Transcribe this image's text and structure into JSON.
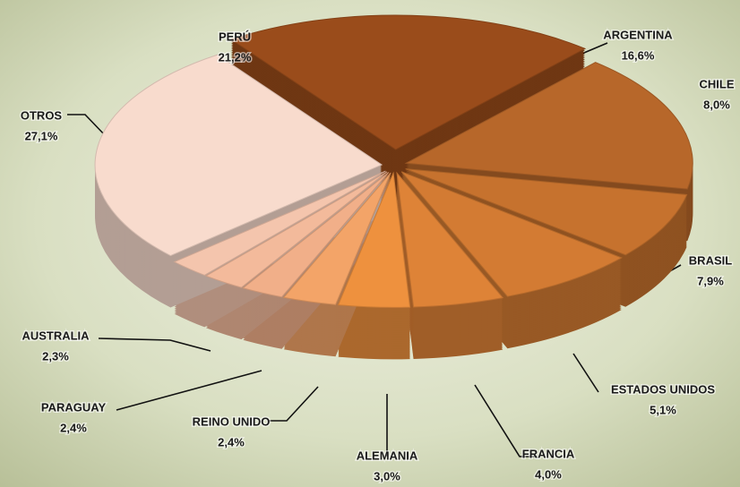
{
  "chart_data": {
    "type": "pie",
    "categories": [
      "PERÚ",
      "ARGENTINA",
      "CHILE",
      "BRASIL",
      "ESTADOS UNIDOS",
      "FRANCIA",
      "ALEMANIA",
      "REINO UNIDO",
      "PARAGUAY",
      "AUSTRALIA",
      "OTROS"
    ],
    "values": [
      21.2,
      16.6,
      8.0,
      7.9,
      5.1,
      4.0,
      3.0,
      2.4,
      2.4,
      2.3,
      27.1
    ],
    "value_labels": [
      "21,2%",
      "16,6%",
      "8,0%",
      "7,9%",
      "5,1%",
      "4,0%",
      "3,0%",
      "2,4%",
      "2,4%",
      "2,3%",
      "27,1%"
    ],
    "colors": [
      "#9a4c1b",
      "#b7672a",
      "#c6722e",
      "#d37b33",
      "#de8337",
      "#ee913e",
      "#f3a468",
      "#f1af89",
      "#f3ba9b",
      "#f4c5ad",
      "#f8dbcd"
    ]
  }
}
